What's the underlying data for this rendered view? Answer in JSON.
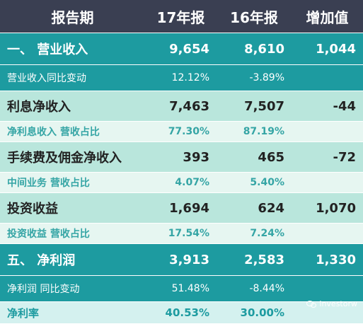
{
  "header": [
    "报告期",
    "17年报",
    "16年报",
    "增加值"
  ],
  "rows": [
    {
      "label": "一、 营业收入",
      "v17": "9,654",
      "v16": "8,610",
      "inc": "1,044"
    },
    {
      "label": "营业收入同比变动",
      "v17": "12.12%",
      "v16": "-3.89%",
      "inc": ""
    },
    {
      "label": "利息净收入",
      "v17": "7,463",
      "v16": "7,507",
      "inc": "-44"
    },
    {
      "label": "净利息收入 营收占比",
      "v17": "77.30%",
      "v16": "87.19%",
      "inc": ""
    },
    {
      "label": "手续费及佣金净收入",
      "v17": "393",
      "v16": "465",
      "inc": "-72"
    },
    {
      "label": "中间业务 营收占比",
      "v17": "4.07%",
      "v16": "5.40%",
      "inc": ""
    },
    {
      "label": "投资收益",
      "v17": "1,694",
      "v16": "624",
      "inc": "1,070"
    },
    {
      "label": "投资收益 营收占比",
      "v17": "17.54%",
      "v16": "7.24%",
      "inc": ""
    },
    {
      "label": "五、 净利润",
      "v17": "3,913",
      "v16": "2,583",
      "inc": "1,330"
    },
    {
      "label": "净利润 同比变动",
      "v17": "51.48%",
      "v16": "-8.44%",
      "inc": ""
    },
    {
      "label": "净利率",
      "v17": "40.53%",
      "v16": "30.00%",
      "inc": ""
    }
  ],
  "watermark": {
    "text": "investorw",
    "icon": "wechat-icon"
  },
  "colors": {
    "header_bg": "#3a3f52",
    "teal": "#1d9ba0",
    "light_green": "#b9e6dc",
    "pale_green": "#e6f6f1",
    "last_row_bg": "#d4f1ef"
  }
}
